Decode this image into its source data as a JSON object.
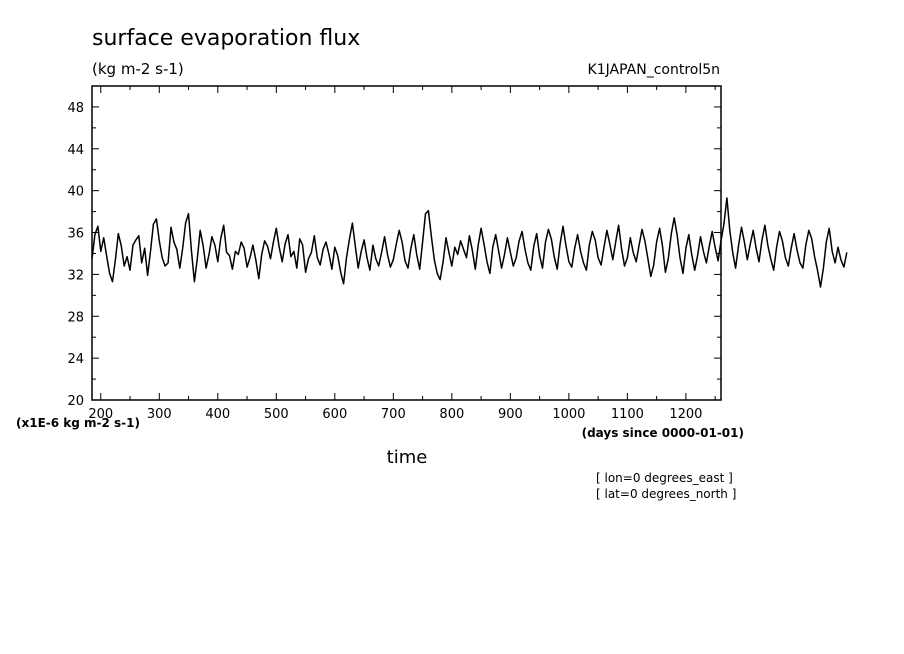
{
  "chart_data": {
    "type": "line",
    "title": "surface evaporation flux",
    "units_label": "(kg m-2 s-1)",
    "dataset_label": "K1JAPAN_control5n",
    "xlabel": "time",
    "x_units_label": "(days since 0000-01-01)",
    "y_scale_label": "(x1E-6 kg m-2 s-1)",
    "xlim": [
      185,
      1260
    ],
    "ylim": [
      20,
      50
    ],
    "x_ticks": [
      200,
      300,
      400,
      500,
      600,
      700,
      800,
      900,
      1000,
      1100,
      1200
    ],
    "y_ticks": [
      20,
      24,
      28,
      32,
      36,
      40,
      44,
      48
    ],
    "x_start": 185,
    "x_step": 5,
    "series": [
      {
        "values": [
          33.5,
          35.8,
          36.6,
          34.2,
          35.5,
          33.8,
          32.1,
          31.3,
          33.4,
          35.9,
          34.7,
          32.8,
          33.7,
          32.4,
          34.8,
          35.3,
          35.7,
          33.1,
          34.5,
          31.9,
          34.2,
          36.8,
          37.3,
          35.2,
          33.6,
          32.8,
          33.1,
          36.5,
          35.1,
          34.4,
          32.6,
          34.5,
          36.9,
          37.8,
          34.2,
          31.3,
          33.5,
          36.2,
          34.7,
          32.6,
          33.9,
          35.6,
          34.8,
          33.2,
          35.4,
          36.7,
          34.1,
          33.8,
          32.5,
          34.2,
          33.9,
          35.1,
          34.5,
          32.7,
          33.6,
          34.8,
          33.4,
          31.6,
          33.9,
          35.2,
          34.7,
          33.5,
          35.1,
          36.4,
          34.6,
          33.2,
          34.9,
          35.8,
          33.7,
          34.2,
          32.6,
          35.4,
          34.8,
          32.2,
          33.5,
          34.1,
          35.7,
          33.6,
          32.9,
          34.4,
          35.1,
          33.9,
          32.5,
          34.6,
          33.8,
          32.2,
          31.1,
          33.6,
          35.4,
          36.9,
          34.7,
          32.6,
          34.2,
          35.3,
          33.6,
          32.4,
          34.8,
          33.5,
          32.8,
          34.1,
          35.6,
          33.9,
          32.7,
          33.4,
          34.9,
          36.2,
          35.1,
          33.3,
          32.6,
          34.5,
          35.8,
          33.9,
          32.5,
          35.1,
          37.8,
          38.1,
          35.6,
          33.4,
          32.1,
          31.5,
          33.2,
          35.5,
          34.1,
          32.8,
          34.6,
          33.9,
          35.2,
          34.4,
          33.6,
          35.7,
          34.3,
          32.5,
          34.8,
          36.4,
          34.9,
          33.2,
          32.1,
          34.6,
          35.8,
          34.2,
          32.6,
          33.9,
          35.5,
          34.1,
          32.8,
          33.6,
          35.2,
          36.1,
          34.4,
          33.1,
          32.4,
          34.7,
          35.9,
          33.8,
          32.6,
          35.1,
          36.3,
          35.4,
          33.7,
          32.5,
          34.9,
          36.6,
          34.8,
          33.2,
          32.7,
          34.5,
          35.8,
          34.2,
          33.1,
          32.4,
          34.8,
          36.1,
          35.3,
          33.6,
          32.9,
          34.6,
          36.2,
          34.9,
          33.4,
          35.1,
          36.7,
          34.5,
          32.8,
          33.6,
          35.5,
          34.1,
          33.2,
          34.8,
          36.3,
          35.2,
          33.5,
          31.8,
          32.9,
          35.1,
          36.4,
          34.7,
          32.2,
          33.5,
          35.9,
          37.4,
          35.8,
          33.6,
          32.1,
          34.5,
          35.8,
          33.9,
          32.4,
          33.8,
          35.6,
          34.2,
          33.1,
          34.7,
          36.1,
          34.6,
          33.3,
          35.2,
          36.8,
          39.3,
          36.2,
          34.1,
          32.6,
          34.8,
          36.5,
          35.1,
          33.4,
          34.9,
          36.2,
          34.5,
          33.2,
          35.3,
          36.7,
          34.8,
          33.5,
          32.4,
          34.6,
          36.1,
          35.2,
          33.6,
          32.8,
          34.5,
          35.9,
          34.3,
          33.1,
          32.6,
          34.8,
          36.2,
          35.4,
          33.7,
          32.4,
          30.8,
          32.6,
          35.1,
          36.4,
          34.2,
          33.1,
          34.6,
          33.4,
          32.7,
          34.1
        ]
      }
    ]
  },
  "footer": {
    "lon_label": "[ lon=0 degrees_east ]",
    "lat_label": "[ lat=0 degrees_north ]"
  },
  "colors": {
    "line": "#000000",
    "frame": "#000000",
    "background": "#ffffff"
  }
}
